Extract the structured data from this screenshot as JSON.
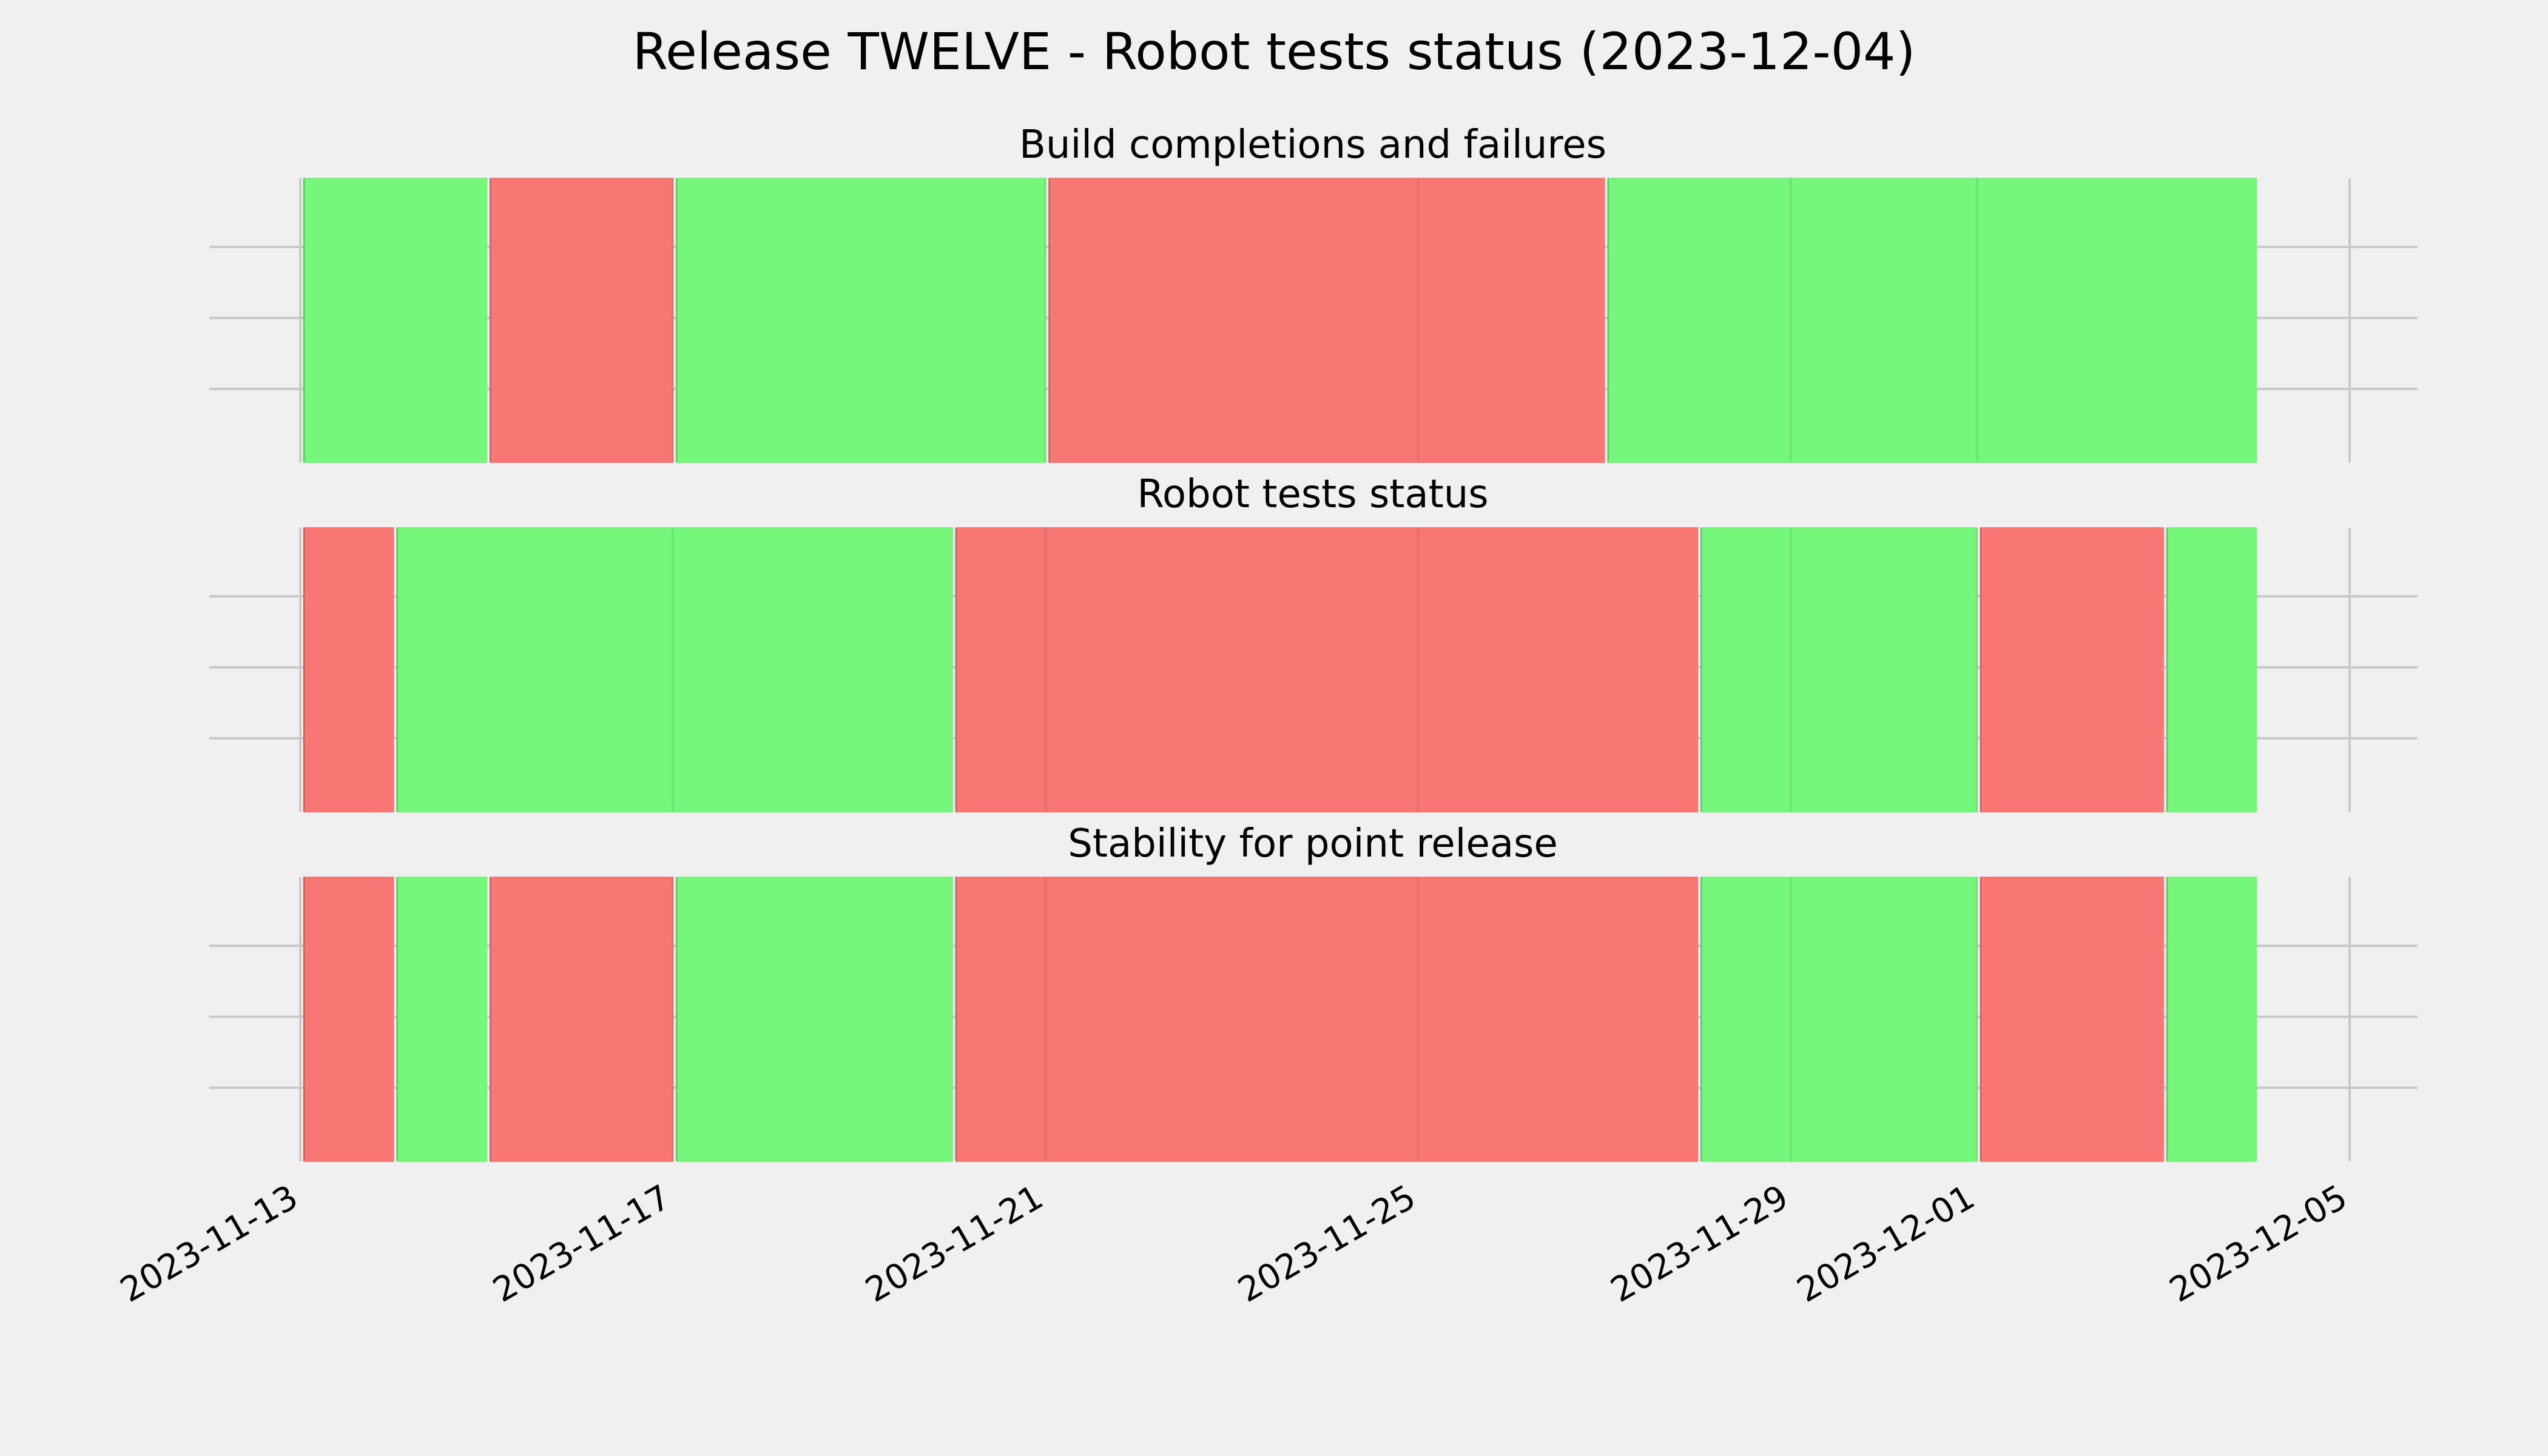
{
  "chart_data": {
    "type": "timeline",
    "title": "Release TWELVE - Robot tests status (2023-12-04)",
    "x_range": [
      "2023-11-13",
      "2023-12-05"
    ],
    "x_ticks": [
      "2023-11-13",
      "2023-11-17",
      "2023-11-21",
      "2023-11-25",
      "2023-11-29",
      "2023-12-01",
      "2023-12-05"
    ],
    "status_colors": {
      "pass": "#74f77a",
      "fail": "#f87774"
    },
    "panels": [
      {
        "title": "Build completions and failures",
        "segments": [
          {
            "start": "2023-11-13",
            "end": "2023-11-15",
            "status": "pass"
          },
          {
            "start": "2023-11-15",
            "end": "2023-11-17",
            "status": "fail"
          },
          {
            "start": "2023-11-17",
            "end": "2023-11-21",
            "status": "pass"
          },
          {
            "start": "2023-11-21",
            "end": "2023-11-27",
            "status": "fail"
          },
          {
            "start": "2023-11-27",
            "end": "2023-12-04",
            "status": "pass"
          }
        ]
      },
      {
        "title": "Robot tests status",
        "segments": [
          {
            "start": "2023-11-13",
            "end": "2023-11-14",
            "status": "fail"
          },
          {
            "start": "2023-11-14",
            "end": "2023-11-20",
            "status": "pass"
          },
          {
            "start": "2023-11-20",
            "end": "2023-11-28",
            "status": "fail"
          },
          {
            "start": "2023-11-28",
            "end": "2023-12-01",
            "status": "pass"
          },
          {
            "start": "2023-12-01",
            "end": "2023-12-03",
            "status": "fail"
          },
          {
            "start": "2023-12-03",
            "end": "2023-12-04",
            "status": "pass"
          }
        ]
      },
      {
        "title": "Stability for point release",
        "segments": [
          {
            "start": "2023-11-13",
            "end": "2023-11-14",
            "status": "fail"
          },
          {
            "start": "2023-11-14",
            "end": "2023-11-15",
            "status": "pass"
          },
          {
            "start": "2023-11-15",
            "end": "2023-11-17",
            "status": "fail"
          },
          {
            "start": "2023-11-17",
            "end": "2023-11-20",
            "status": "pass"
          },
          {
            "start": "2023-11-20",
            "end": "2023-11-28",
            "status": "fail"
          },
          {
            "start": "2023-11-28",
            "end": "2023-12-01",
            "status": "pass"
          },
          {
            "start": "2023-12-01",
            "end": "2023-12-03",
            "status": "fail"
          },
          {
            "start": "2023-12-03",
            "end": "2023-12-04",
            "status": "pass"
          }
        ]
      }
    ]
  }
}
